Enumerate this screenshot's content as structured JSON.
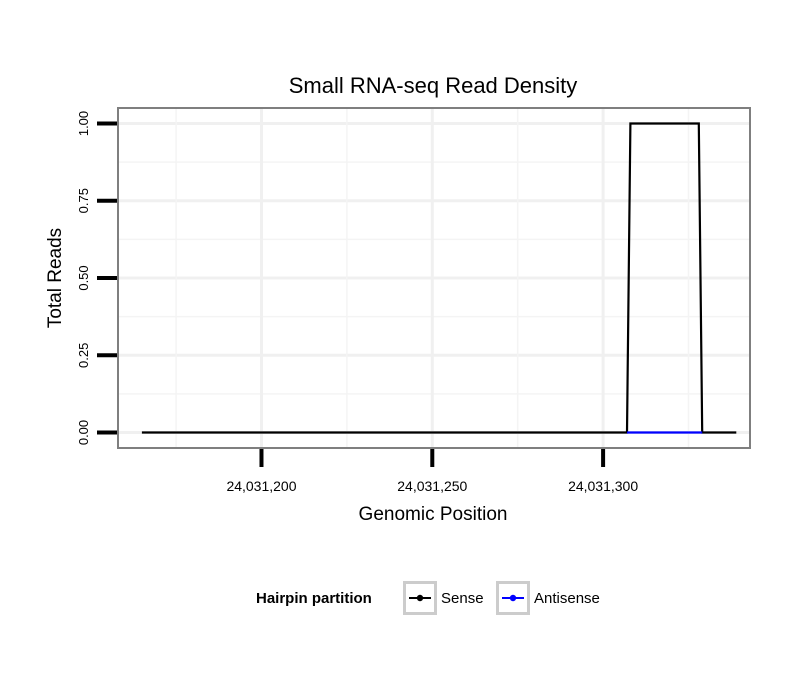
{
  "chart_data": {
    "type": "line",
    "title": "Small RNA-seq Read Density",
    "xlabel": "Genomic Position",
    "ylabel": "Total Reads",
    "xlim": [
      24031158,
      24031343
    ],
    "ylim": [
      -0.05,
      1.05
    ],
    "xticks": [
      {
        "value": 24031200,
        "label": "24,031,200"
      },
      {
        "value": 24031250,
        "label": "24,031,250"
      },
      {
        "value": 24031300,
        "label": "24,031,300"
      }
    ],
    "yticks": [
      {
        "value": 0.0,
        "label": "0.00"
      },
      {
        "value": 0.25,
        "label": "0.25"
      },
      {
        "value": 0.5,
        "label": "0.50"
      },
      {
        "value": 0.75,
        "label": "0.75"
      },
      {
        "value": 1.0,
        "label": "1.00"
      }
    ],
    "grid": true,
    "legend": {
      "position": "bottom",
      "title": "Hairpin partition",
      "entries": [
        {
          "name": "Sense",
          "color": "#000000"
        },
        {
          "name": "Antisense",
          "color": "#0000ff"
        }
      ]
    },
    "series": [
      {
        "name": "Sense",
        "color": "#000000",
        "x": [
          24031165,
          24031307,
          24031308,
          24031328,
          24031329,
          24031339
        ],
        "y": [
          0,
          0,
          1,
          1,
          0,
          0
        ]
      },
      {
        "name": "Antisense",
        "color": "#0000ff",
        "x": [
          24031307,
          24031329
        ],
        "y": [
          0,
          0
        ]
      }
    ]
  }
}
